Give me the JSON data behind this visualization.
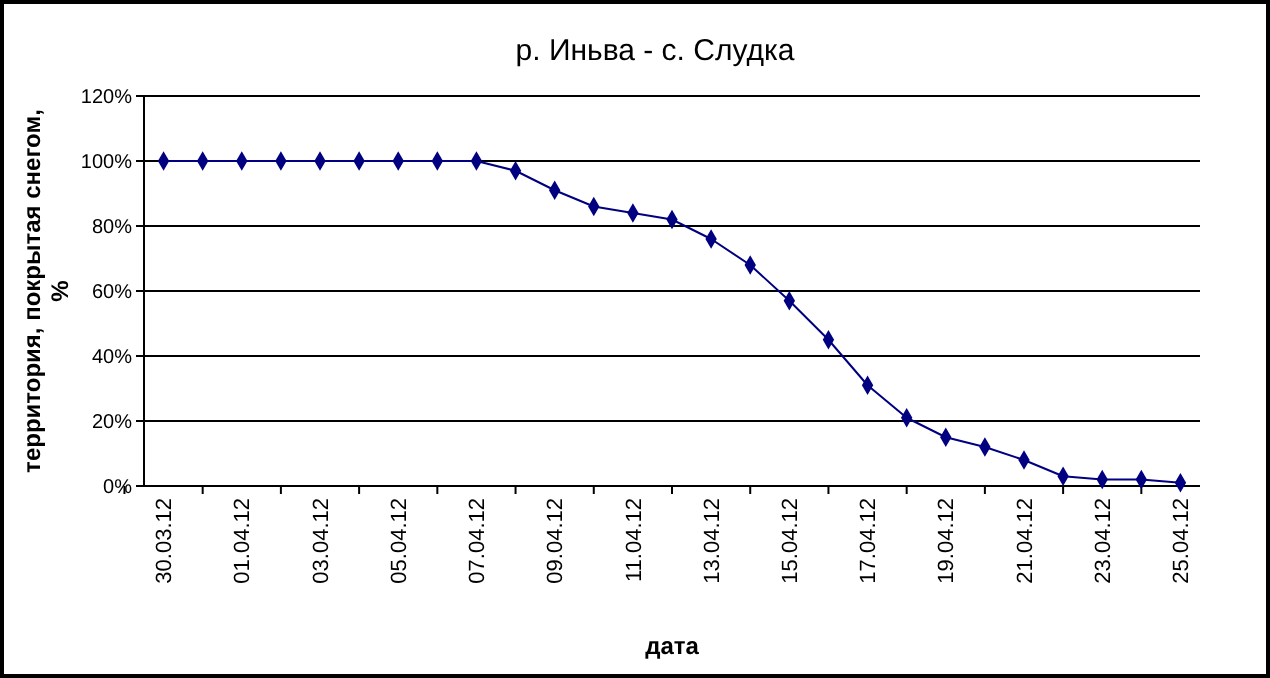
{
  "chart_data": {
    "type": "line",
    "title": "р. Иньва - с. Слудка",
    "xlabel": "дата",
    "ylabel": "территория, покрытая снегом, %",
    "categories": [
      "30.03.12",
      null,
      "01.04.12",
      null,
      "03.04.12",
      null,
      "05.04.12",
      null,
      "07.04.12",
      null,
      "09.04.12",
      null,
      "11.04.12",
      null,
      "13.04.12",
      null,
      "15.04.12",
      null,
      "17.04.12",
      null,
      "19.04.12",
      null,
      "21.04.12",
      null,
      "23.04.12",
      null,
      "25.04.12"
    ],
    "series": [
      {
        "color": "#000080",
        "values": [
          100,
          100,
          100,
          100,
          100,
          100,
          100,
          100,
          100,
          97,
          91,
          86,
          84,
          82,
          76,
          68,
          57,
          45,
          31,
          21,
          15,
          12,
          8,
          3,
          2,
          2,
          1
        ]
      }
    ],
    "ylim": [
      0,
      120
    ],
    "yticks": [
      {
        "value": 0,
        "label": "0%"
      },
      {
        "value": 20,
        "label": "20%"
      },
      {
        "value": 40,
        "label": "40%"
      },
      {
        "value": 60,
        "label": "60%"
      },
      {
        "value": 80,
        "label": "80%"
      },
      {
        "value": 100,
        "label": "100%"
      },
      {
        "value": 120,
        "label": "120%"
      }
    ],
    "grid": "y",
    "marker": "diamond",
    "line_style": "solid"
  }
}
